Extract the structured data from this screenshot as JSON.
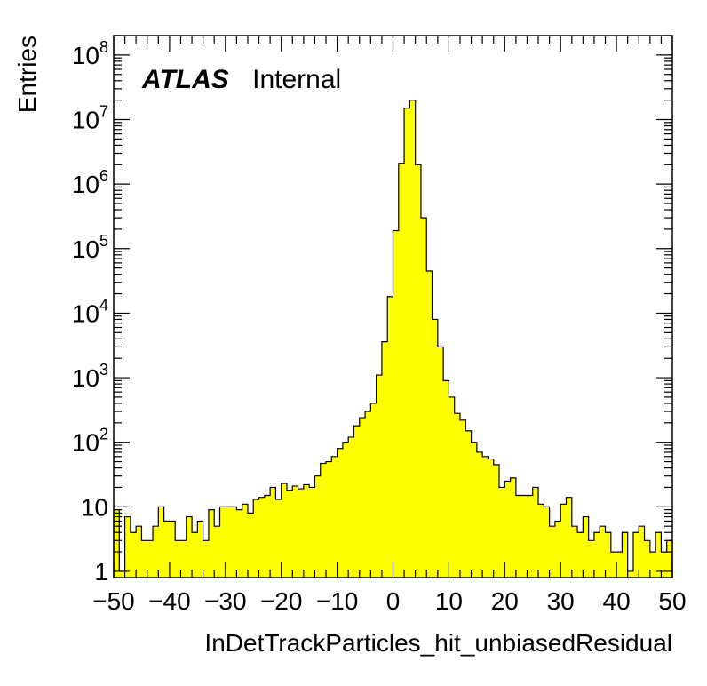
{
  "chart_data": {
    "type": "bar",
    "xlabel": "InDetTrackParticles_hit_unbiasedResidual",
    "ylabel": "Entries",
    "xlim": [
      -50,
      50
    ],
    "ylim": [
      0.8,
      200000000
    ],
    "y_scale": "log",
    "bin_width": 1,
    "bin_start": -50,
    "fill_color": "#ffff00",
    "line_color": "#000000",
    "x_tick_labels": [
      "−50",
      "−40",
      "−30",
      "−20",
      "−10",
      "0",
      "10",
      "20",
      "30",
      "40",
      "50"
    ],
    "x_tick_values": [
      -50,
      -40,
      -30,
      -20,
      -10,
      0,
      10,
      20,
      30,
      40,
      50
    ],
    "y_tick_labels": [
      {
        "base": "1",
        "exp": ""
      },
      {
        "base": "10",
        "exp": ""
      },
      {
        "base": "10",
        "exp": "2"
      },
      {
        "base": "10",
        "exp": "3"
      },
      {
        "base": "10",
        "exp": "4"
      },
      {
        "base": "10",
        "exp": "5"
      },
      {
        "base": "10",
        "exp": "6"
      },
      {
        "base": "10",
        "exp": "7"
      },
      {
        "base": "10",
        "exp": "8"
      }
    ],
    "y_tick_values": [
      1,
      10,
      100,
      1000,
      10000,
      100000,
      1000000,
      10000000,
      100000000
    ],
    "values": [
      9,
      1,
      7,
      4,
      5,
      3,
      3,
      5,
      10,
      6,
      6,
      3,
      3,
      7,
      4,
      6,
      3,
      9,
      5,
      10,
      10,
      10,
      9,
      11,
      8,
      13,
      14,
      15,
      20,
      13,
      23,
      18,
      21,
      19,
      22,
      20,
      30,
      47,
      50,
      60,
      80,
      100,
      120,
      180,
      240,
      300,
      400,
      1100,
      3600,
      18000,
      190000,
      2100000,
      15000000,
      20000000,
      2000000,
      300000,
      45000,
      8000,
      3000,
      900,
      500,
      280,
      220,
      150,
      100,
      70,
      60,
      55,
      45,
      20,
      25,
      28,
      15,
      15,
      15,
      20,
      11,
      10,
      5,
      6,
      11,
      14,
      5,
      4,
      7,
      3,
      4,
      5,
      4,
      2,
      2,
      4,
      1,
      4,
      5,
      3,
      2,
      4,
      2,
      3
    ],
    "annotation": {
      "bold": "ATLAS",
      "normal": "Internal"
    }
  }
}
